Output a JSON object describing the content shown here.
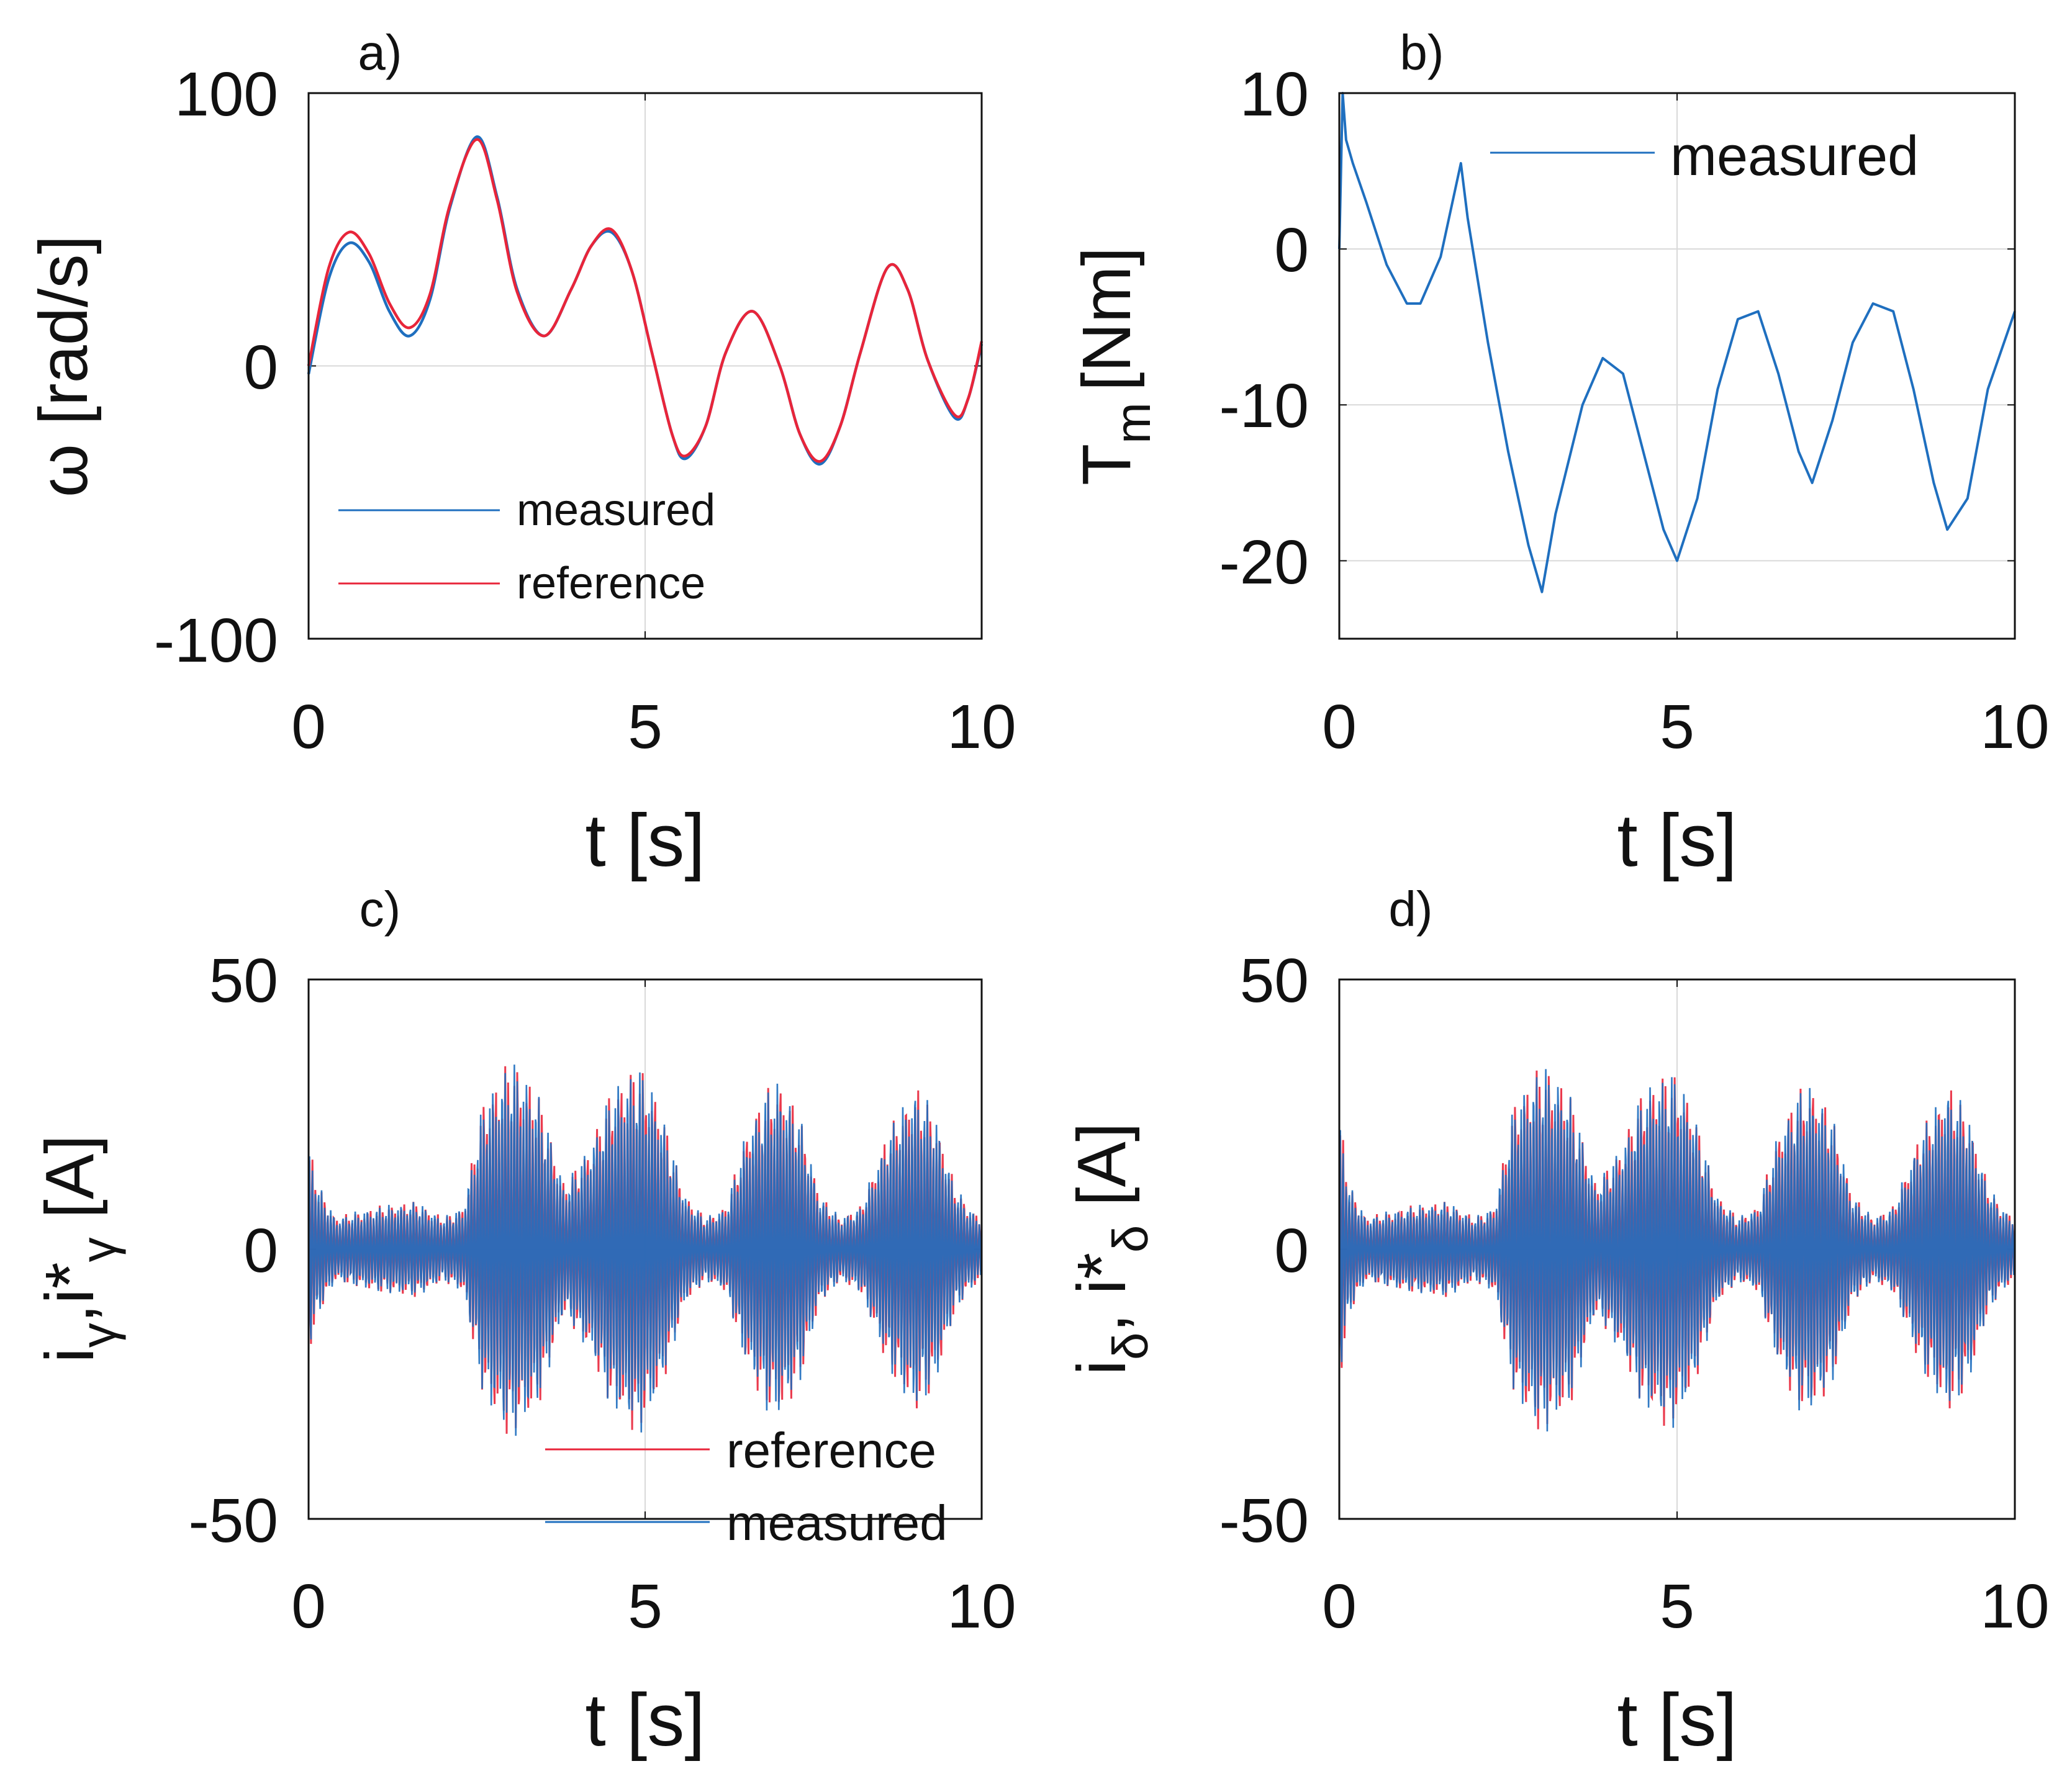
{
  "figure": {
    "colors": {
      "measured": "#1f6fbf",
      "reference": "#e8253a",
      "axis": "#111111",
      "grid": "#d9d9d9"
    }
  },
  "chart_data": [
    {
      "id": "a",
      "type": "line",
      "panel_label": "a)",
      "xlabel": "t [s]",
      "ylabel": "ω [rad/s]",
      "xlim": [
        0,
        10
      ],
      "ylim": [
        -100,
        100
      ],
      "xticks": [
        0,
        5,
        10
      ],
      "yticks": [
        -100,
        0,
        100
      ],
      "xtick_labels": [
        "0",
        "5",
        "10"
      ],
      "ytick_labels": [
        "-100",
        "0",
        "100"
      ],
      "grid": true,
      "legend": {
        "placement": "bottom-left",
        "entries": [
          "measured",
          "reference"
        ]
      },
      "series": [
        {
          "name": "measured",
          "color": "#1f6fbf",
          "x": [
            0,
            0.3,
            0.6,
            0.9,
            1.2,
            1.5,
            1.8,
            2.1,
            2.5,
            2.8,
            3.1,
            3.5,
            3.9,
            4.2,
            4.5,
            4.8,
            5.1,
            5.4,
            5.6,
            5.9,
            6.2,
            6.6,
            7.0,
            7.3,
            7.6,
            7.9,
            8.2,
            8.6,
            8.9,
            9.2,
            9.6,
            9.8,
            10.0
          ],
          "y": [
            -3,
            32,
            45,
            38,
            20,
            11,
            24,
            58,
            84,
            62,
            28,
            11,
            28,
            44,
            49,
            35,
            5,
            -25,
            -34,
            -22,
            5,
            20,
            0,
            -25,
            -36,
            -22,
            5,
            36,
            28,
            2,
            -19,
            -12,
            8
          ]
        },
        {
          "name": "reference",
          "color": "#e8253a",
          "x": [
            0,
            0.3,
            0.6,
            0.9,
            1.2,
            1.5,
            1.8,
            2.1,
            2.5,
            2.8,
            3.1,
            3.5,
            3.9,
            4.2,
            4.5,
            4.8,
            5.1,
            5.4,
            5.6,
            5.9,
            6.2,
            6.6,
            7.0,
            7.3,
            7.6,
            7.9,
            8.2,
            8.6,
            8.9,
            9.2,
            9.6,
            9.8,
            10.0
          ],
          "y": [
            0,
            36,
            49,
            41,
            23,
            14,
            26,
            59,
            83,
            61,
            27,
            11,
            28,
            44,
            50,
            35,
            5,
            -25,
            -33,
            -22,
            5,
            20,
            0,
            -25,
            -35,
            -22,
            5,
            36,
            28,
            2,
            -18,
            -12,
            9
          ]
        }
      ]
    },
    {
      "id": "b",
      "type": "line",
      "panel_label": "b)",
      "xlabel": "t [s]",
      "ylabel_main": "T",
      "ylabel_sub": "m",
      "ylabel_unit": "[Nm]",
      "xlim": [
        0,
        10
      ],
      "ylim": [
        -25,
        10
      ],
      "xticks": [
        0,
        5,
        10
      ],
      "yticks": [
        -20,
        -10,
        0,
        10
      ],
      "xtick_labels": [
        "0",
        "5",
        "10"
      ],
      "ytick_labels": [
        "-20",
        "-10",
        "0",
        "10"
      ],
      "grid": true,
      "legend": {
        "placement": "top-right",
        "entries": [
          "measured"
        ]
      },
      "series": [
        {
          "name": "measured",
          "color": "#1f6fbf",
          "x": [
            0,
            0.05,
            0.1,
            0.2,
            0.4,
            0.7,
            1.0,
            1.2,
            1.5,
            1.8,
            1.9,
            2.2,
            2.5,
            2.8,
            3.0,
            3.2,
            3.6,
            3.9,
            4.2,
            4.5,
            4.8,
            5.0,
            5.3,
            5.6,
            5.9,
            6.2,
            6.5,
            6.8,
            7.0,
            7.3,
            7.6,
            7.9,
            8.2,
            8.5,
            8.8,
            9.0,
            9.3,
            9.6,
            10.0
          ],
          "y": [
            0,
            10,
            7,
            5.5,
            3,
            -1,
            -3.5,
            -3.5,
            -0.5,
            5.5,
            2,
            -6,
            -13,
            -19,
            -22,
            -17,
            -10,
            -7,
            -8,
            -13,
            -18,
            -20,
            -16,
            -9,
            -4.5,
            -4,
            -8,
            -13,
            -15,
            -11,
            -6,
            -3.5,
            -4,
            -9,
            -15,
            -18,
            -16,
            -9,
            -4
          ]
        }
      ]
    },
    {
      "id": "c",
      "type": "line",
      "panel_label": "c)",
      "xlabel": "t [s]",
      "ylabel_parts": [
        "i",
        "γ",
        ",i*",
        "γ",
        " [A]"
      ],
      "xlim": [
        0,
        10
      ],
      "ylim": [
        -50,
        50
      ],
      "xticks": [
        0,
        5,
        10
      ],
      "yticks": [
        -50,
        0,
        50
      ],
      "xtick_labels": [
        "0",
        "5",
        "10"
      ],
      "ytick_labels": [
        "-50",
        "0",
        "50"
      ],
      "grid": true,
      "legend": {
        "placement": "bottom-right",
        "entries": [
          "reference",
          "measured"
        ]
      },
      "envelope": {
        "t": [
          0,
          0.15,
          0.4,
          1.0,
          1.6,
          2.0,
          2.3,
          2.6,
          3.0,
          3.4,
          3.8,
          4.2,
          4.5,
          4.9,
          5.2,
          5.6,
          5.9,
          6.2,
          6.5,
          6.8,
          7.0,
          7.3,
          7.6,
          7.9,
          8.2,
          8.6,
          9.0,
          9.3,
          9.6,
          9.8,
          10.0
        ],
        "amplitude": [
          20,
          12,
          6,
          8,
          9,
          6,
          8,
          28,
          36,
          30,
          12,
          20,
          30,
          35,
          28,
          10,
          6,
          8,
          22,
          30,
          32,
          25,
          10,
          6,
          8,
          22,
          31,
          26,
          12,
          8,
          6
        ]
      },
      "series": [
        {
          "name": "reference",
          "color": "#e8253a"
        },
        {
          "name": "measured",
          "color": "#1f6fbf"
        }
      ]
    },
    {
      "id": "d",
      "type": "line",
      "panel_label": "d)",
      "xlabel": "t [s]",
      "ylabel_parts": [
        "i",
        "δ",
        ", i*",
        "δ",
        " [A]"
      ],
      "xlim": [
        0,
        10
      ],
      "ylim": [
        -50,
        50
      ],
      "xticks": [
        0,
        5,
        10
      ],
      "yticks": [
        -50,
        0,
        50
      ],
      "xtick_labels": [
        "0",
        "5",
        "10"
      ],
      "ytick_labels": [
        "-50",
        "0",
        "50"
      ],
      "grid": true,
      "legend": null,
      "envelope": {
        "t": [
          0,
          0.15,
          0.4,
          1.0,
          1.6,
          2.0,
          2.3,
          2.6,
          3.0,
          3.4,
          3.8,
          4.2,
          4.5,
          4.9,
          5.2,
          5.6,
          5.9,
          6.2,
          6.5,
          6.8,
          7.0,
          7.3,
          7.6,
          7.9,
          8.2,
          8.6,
          9.0,
          9.3,
          9.6,
          9.8,
          10.0
        ],
        "amplitude": [
          26,
          12,
          6,
          8,
          9,
          6,
          8,
          28,
          35,
          30,
          12,
          20,
          30,
          34,
          28,
          10,
          6,
          8,
          22,
          30,
          31,
          25,
          10,
          6,
          8,
          22,
          31,
          26,
          12,
          8,
          6
        ]
      },
      "series": [
        {
          "name": "reference",
          "color": "#e8253a"
        },
        {
          "name": "measured",
          "color": "#1f6fbf"
        }
      ]
    }
  ]
}
